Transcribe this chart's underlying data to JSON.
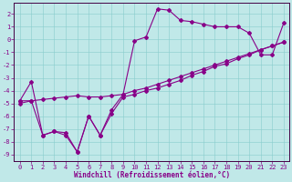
{
  "xlabel": "Windchill (Refroidissement éolien,°C)",
  "bg_color": "#c0e8e8",
  "line_color": "#880088",
  "xlim": [
    -0.5,
    23.5
  ],
  "ylim": [
    -9.5,
    2.9
  ],
  "xticks": [
    0,
    1,
    2,
    3,
    4,
    5,
    6,
    7,
    8,
    9,
    10,
    11,
    12,
    13,
    14,
    15,
    16,
    17,
    18,
    19,
    20,
    21,
    22,
    23
  ],
  "yticks": [
    -9,
    -8,
    -7,
    -6,
    -5,
    -4,
    -3,
    -2,
    -1,
    0,
    1,
    2
  ],
  "line1_x": [
    0,
    1,
    2,
    3,
    4,
    5,
    6,
    7,
    8,
    9,
    10,
    11,
    12,
    13,
    14,
    15,
    16,
    17,
    18,
    19,
    20,
    21,
    22,
    23
  ],
  "line1_y": [
    -4.8,
    -3.3,
    -7.5,
    -7.2,
    -7.5,
    -8.8,
    -6.0,
    -7.5,
    -5.5,
    -4.3,
    -0.1,
    0.2,
    2.4,
    2.3,
    1.5,
    1.4,
    1.2,
    1.0,
    1.0,
    1.0,
    0.5,
    -1.2,
    -1.2,
    1.3
  ],
  "line2_x": [
    0,
    1,
    2,
    3,
    4,
    5,
    6,
    7,
    8,
    9,
    10,
    11,
    12,
    13,
    14,
    15,
    16,
    17,
    18,
    19,
    20,
    21,
    22,
    23
  ],
  "line2_y": [
    -4.8,
    -4.8,
    -7.5,
    -7.2,
    -7.3,
    -8.8,
    -6.0,
    -7.5,
    -5.8,
    -4.5,
    -4.3,
    -4.0,
    -3.8,
    -3.5,
    -3.2,
    -2.8,
    -2.5,
    -2.1,
    -1.9,
    -1.5,
    -1.2,
    -0.8,
    -0.5,
    -0.2
  ],
  "line3_x": [
    0,
    1,
    2,
    3,
    4,
    5,
    6,
    7,
    8,
    9,
    10,
    11,
    12,
    13,
    14,
    15,
    16,
    17,
    18,
    19,
    20,
    21,
    22,
    23
  ],
  "line3_y": [
    -5.0,
    -4.8,
    -4.7,
    -4.6,
    -4.5,
    -4.4,
    -4.5,
    -4.5,
    -4.4,
    -4.3,
    -4.0,
    -3.8,
    -3.5,
    -3.2,
    -2.9,
    -2.6,
    -2.3,
    -2.0,
    -1.7,
    -1.4,
    -1.1,
    -0.8,
    -0.5,
    -0.2
  ],
  "marker_size": 2.0,
  "linewidth": 0.8,
  "tick_fontsize": 5.0,
  "xlabel_fontsize": 5.5
}
